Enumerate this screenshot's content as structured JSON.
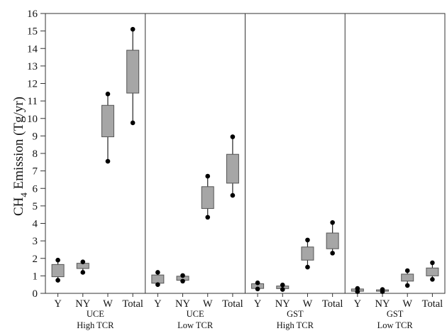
{
  "chart_data": {
    "type": "box",
    "ylabel": "CH4 Emission (Tg/yr)",
    "ylabel_main": "CH",
    "ylabel_sub": "4",
    "ylabel_rest": " Emission (Tg/yr)",
    "ylim": [
      0,
      16
    ],
    "yticks": [
      0,
      1,
      2,
      3,
      4,
      5,
      6,
      7,
      8,
      9,
      10,
      11,
      12,
      13,
      14,
      15,
      16
    ],
    "grid": false,
    "box_color": "#a6a6a6",
    "panels": [
      {
        "label_line1": "UCE",
        "label_line2": "High TCR",
        "boxes": [
          {
            "category": "Y",
            "min": 0.75,
            "q1": 0.95,
            "q3": 1.65,
            "max": 1.9
          },
          {
            "category": "NY",
            "min": 1.2,
            "q1": 1.42,
            "q3": 1.72,
            "max": 1.8
          },
          {
            "category": "W",
            "min": 7.55,
            "q1": 8.95,
            "q3": 10.75,
            "max": 11.4
          },
          {
            "category": "Total",
            "min": 9.75,
            "q1": 11.45,
            "q3": 13.9,
            "max": 15.1
          }
        ]
      },
      {
        "label_line1": "UCE",
        "label_line2": "Low TCR",
        "boxes": [
          {
            "category": "Y",
            "min": 0.5,
            "q1": 0.58,
            "q3": 1.05,
            "max": 1.2
          },
          {
            "category": "NY",
            "min": 0.7,
            "q1": 0.75,
            "q3": 0.98,
            "max": 1.02
          },
          {
            "category": "W",
            "min": 4.35,
            "q1": 4.85,
            "q3": 6.1,
            "max": 6.7
          },
          {
            "category": "Total",
            "min": 5.6,
            "q1": 6.3,
            "q3": 7.95,
            "max": 8.95
          }
        ]
      },
      {
        "label_line1": "GST",
        "label_line2": "High TCR",
        "boxes": [
          {
            "category": "Y",
            "min": 0.25,
            "q1": 0.28,
            "q3": 0.55,
            "max": 0.6
          },
          {
            "category": "NY",
            "min": 0.22,
            "q1": 0.27,
            "q3": 0.42,
            "max": 0.48
          },
          {
            "category": "W",
            "min": 1.5,
            "q1": 1.9,
            "q3": 2.65,
            "max": 3.05
          },
          {
            "category": "Total",
            "min": 2.3,
            "q1": 2.55,
            "q3": 3.45,
            "max": 4.05
          }
        ]
      },
      {
        "label_line1": "GST",
        "label_line2": "Low TCR",
        "boxes": [
          {
            "category": "Y",
            "min": 0.1,
            "q1": 0.12,
            "q3": 0.25,
            "max": 0.28
          },
          {
            "category": "NY",
            "min": 0.1,
            "q1": 0.12,
            "q3": 0.2,
            "max": 0.22
          },
          {
            "category": "W",
            "min": 0.45,
            "q1": 0.7,
            "q3": 1.1,
            "max": 1.3
          },
          {
            "category": "Total",
            "min": 0.8,
            "q1": 1.0,
            "q3": 1.45,
            "max": 1.75
          }
        ]
      }
    ]
  }
}
